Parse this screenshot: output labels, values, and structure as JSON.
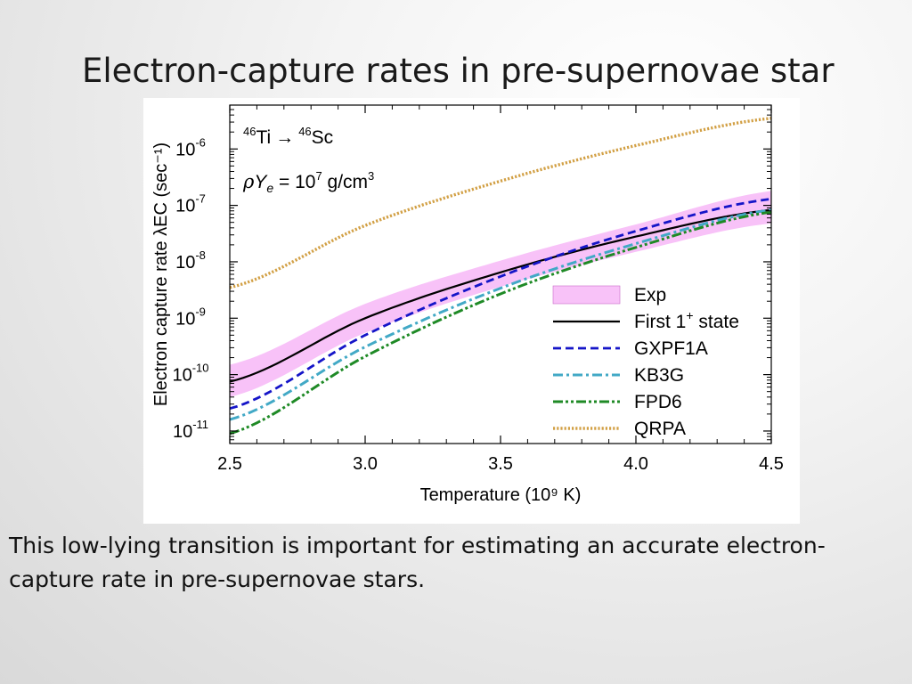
{
  "slide": {
    "title": "Electron-capture rates in pre-supernovae star",
    "caption": "This low-lying transition is important for estimating an accurate electron-capture rate in pre-supernovae stars."
  },
  "chart_data": {
    "type": "line",
    "xlabel": "Temperature (10⁹ K)",
    "ylabel": "Electron capture rate λEC (sec⁻¹)",
    "xlim": [
      2.5,
      4.5
    ],
    "ylim": [
      6e-12,
      6e-06
    ],
    "yscale": "log",
    "x_ticks": [
      "2.5",
      "3.0",
      "3.5",
      "4.0",
      "4.5"
    ],
    "y_ticks": [
      {
        "base": "10",
        "exp": "-11",
        "value": 1e-11
      },
      {
        "base": "10",
        "exp": "-10",
        "value": 1e-10
      },
      {
        "base": "10",
        "exp": "-9",
        "value": 1e-09
      },
      {
        "base": "10",
        "exp": "-8",
        "value": 1e-08
      },
      {
        "base": "10",
        "exp": "-7",
        "value": 1e-07
      },
      {
        "base": "10",
        "exp": "-6",
        "value": 1e-06
      }
    ],
    "annotations": {
      "reaction": {
        "a_mass": "46",
        "a_el": "Ti",
        "arrow": "→",
        "b_mass": "46",
        "b_el": "Sc"
      },
      "density": {
        "rho": "ρ",
        "Y": "Y",
        "e": "e",
        "eq": " = 10",
        "exp": "7",
        "unit": " g/cm",
        "unit_exp": "3"
      }
    },
    "legend_position": "bottom-right",
    "x": [
      2.5,
      3.0,
      3.5,
      4.0,
      4.5
    ],
    "band": {
      "name": "Exp",
      "color": "#f8c2f8",
      "lower": [
        4e-11,
        5.5e-10,
        3.6e-09,
        1.5e-08,
        4.8e-08
      ],
      "upper": [
        1.5e-10,
        1.8e-09,
        1.05e-08,
        4.6e-08,
        1.8e-07
      ]
    },
    "series": [
      {
        "name": "First 1⁺ state",
        "label_base": "First 1",
        "label_sup": "+",
        "label_rest": " state",
        "style": "solid",
        "color": "#000000",
        "values": [
          7.5e-11,
          1e-09,
          6.5e-09,
          2.8e-08,
          8.3e-08
        ]
      },
      {
        "name": "GXPF1A",
        "style": "dash",
        "color": "#1515c8",
        "values": [
          2.5e-11,
          5e-10,
          5.5e-09,
          3.5e-08,
          1.3e-07
        ]
      },
      {
        "name": "KB3G",
        "style": "dashdot",
        "color": "#42a9c6",
        "values": [
          1.6e-11,
          3.1e-10,
          3.4e-09,
          2.1e-08,
          8.3e-08
        ]
      },
      {
        "name": "FPD6",
        "style": "dashdotdot",
        "color": "#1f8a26",
        "values": [
          9e-12,
          2.1e-10,
          2.7e-09,
          1.8e-08,
          7.6e-08
        ]
      },
      {
        "name": "QRPA",
        "style": "dotted",
        "color": "#d2a045",
        "values": [
          3.5e-09,
          4.4e-08,
          2.7e-07,
          1.15e-06,
          3.5e-06
        ]
      }
    ]
  }
}
